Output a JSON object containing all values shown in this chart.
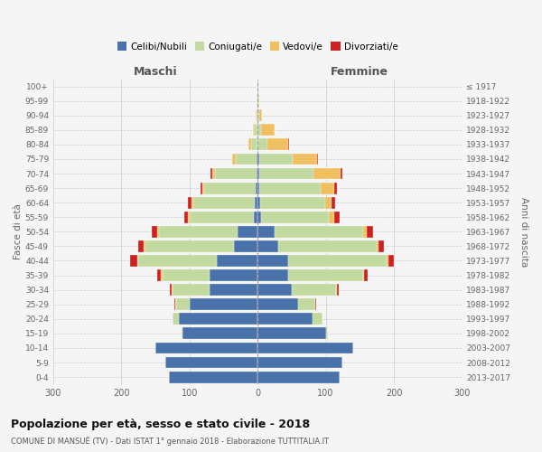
{
  "age_groups": [
    "0-4",
    "5-9",
    "10-14",
    "15-19",
    "20-24",
    "25-29",
    "30-34",
    "35-39",
    "40-44",
    "45-49",
    "50-54",
    "55-59",
    "60-64",
    "65-69",
    "70-74",
    "75-79",
    "80-84",
    "85-89",
    "90-94",
    "95-99",
    "100+"
  ],
  "birth_years": [
    "2013-2017",
    "2008-2012",
    "2003-2007",
    "1998-2002",
    "1993-1997",
    "1988-1992",
    "1983-1987",
    "1978-1982",
    "1973-1977",
    "1968-1972",
    "1963-1967",
    "1958-1962",
    "1953-1957",
    "1948-1952",
    "1943-1947",
    "1938-1942",
    "1933-1937",
    "1928-1932",
    "1923-1927",
    "1918-1922",
    "≤ 1917"
  ],
  "male_celibi": [
    130,
    135,
    150,
    110,
    115,
    100,
    70,
    70,
    60,
    35,
    30,
    5,
    4,
    3,
    2,
    2,
    0,
    0,
    0,
    0,
    0
  ],
  "male_coniugati": [
    0,
    0,
    0,
    2,
    10,
    20,
    55,
    70,
    115,
    130,
    115,
    95,
    90,
    75,
    60,
    30,
    10,
    5,
    2,
    1,
    0
  ],
  "male_vedovi": [
    0,
    0,
    0,
    0,
    0,
    1,
    1,
    2,
    2,
    2,
    2,
    2,
    3,
    3,
    5,
    5,
    3,
    2,
    1,
    0,
    0
  ],
  "male_divorziati": [
    0,
    0,
    0,
    0,
    0,
    1,
    3,
    5,
    10,
    8,
    8,
    5,
    5,
    3,
    2,
    1,
    0,
    0,
    0,
    0,
    0
  ],
  "female_celibi": [
    120,
    125,
    140,
    100,
    80,
    60,
    50,
    45,
    45,
    30,
    25,
    5,
    4,
    3,
    2,
    2,
    0,
    0,
    0,
    0,
    0
  ],
  "female_coniugati": [
    0,
    0,
    0,
    3,
    15,
    25,
    65,
    110,
    145,
    145,
    130,
    100,
    95,
    90,
    80,
    50,
    15,
    5,
    2,
    1,
    0
  ],
  "female_vedovi": [
    0,
    0,
    0,
    0,
    0,
    0,
    1,
    1,
    2,
    3,
    5,
    8,
    10,
    20,
    40,
    35,
    30,
    20,
    5,
    2,
    1
  ],
  "female_divorziati": [
    0,
    0,
    0,
    0,
    0,
    1,
    3,
    5,
    8,
    8,
    10,
    8,
    5,
    3,
    3,
    2,
    1,
    0,
    0,
    0,
    0
  ],
  "color_celibi": "#4a72aa",
  "color_coniugati": "#c2d9a0",
  "color_vedovi": "#f0c060",
  "color_divorziati": "#cc2222",
  "title": "Popolazione per età, sesso e stato civile - 2018",
  "subtitle": "COMUNE DI MANSUÈ (TV) - Dati ISTAT 1° gennaio 2018 - Elaborazione TUTTITALIA.IT",
  "xlabel_left": "Maschi",
  "xlabel_right": "Femmine",
  "ylabel_left": "Fasce di età",
  "ylabel_right": "Anni di nascita",
  "xlim": 300,
  "legend_labels": [
    "Celibi/Nubili",
    "Coniugati/e",
    "Vedovi/e",
    "Divorziati/e"
  ],
  "bg_color": "#f5f5f5"
}
